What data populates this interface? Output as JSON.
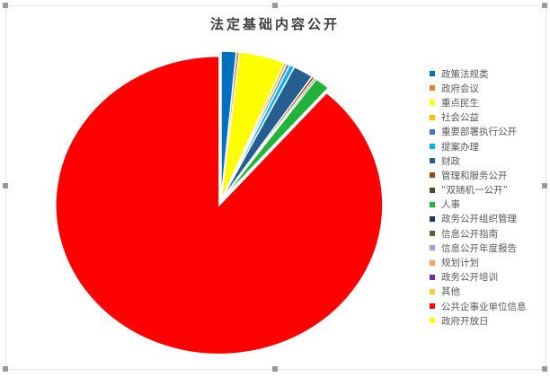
{
  "chart_data": {
    "type": "pie",
    "title": "法定基础内容公开",
    "legend_position": "right",
    "exploded_slice": "公共企事业单位信息",
    "categories": [
      "政策法规类",
      "政府会议",
      "重点民生",
      "社会公益",
      "重要部署执行公开",
      "提案办理",
      "财政",
      "管理和服务公开",
      "“双随机一公开”",
      "人事",
      "政务公开组织管理",
      "信息公开指南",
      "信息公开年度报告",
      "规划计划",
      "政务公开培训",
      "其他",
      "公共企事业单位信息",
      "政府开放日"
    ],
    "values": [
      1.5,
      0.3,
      4.5,
      0.3,
      0.3,
      0.5,
      2.0,
      0.3,
      0.2,
      1.5,
      0,
      0,
      0,
      0,
      0,
      0,
      88.6,
      0
    ],
    "colors": [
      "#0070c0",
      "#ed7d31",
      "#ffff00",
      "#ffc000",
      "#4472c4",
      "#00b0f0",
      "#255e91",
      "#9e480e",
      "#375623",
      "#22b33a",
      "#203864",
      "#4e6d2f",
      "#8faadc",
      "#f4a460",
      "#7030a0",
      "#ffc837",
      "#ff0000",
      "#ffff00"
    ]
  }
}
